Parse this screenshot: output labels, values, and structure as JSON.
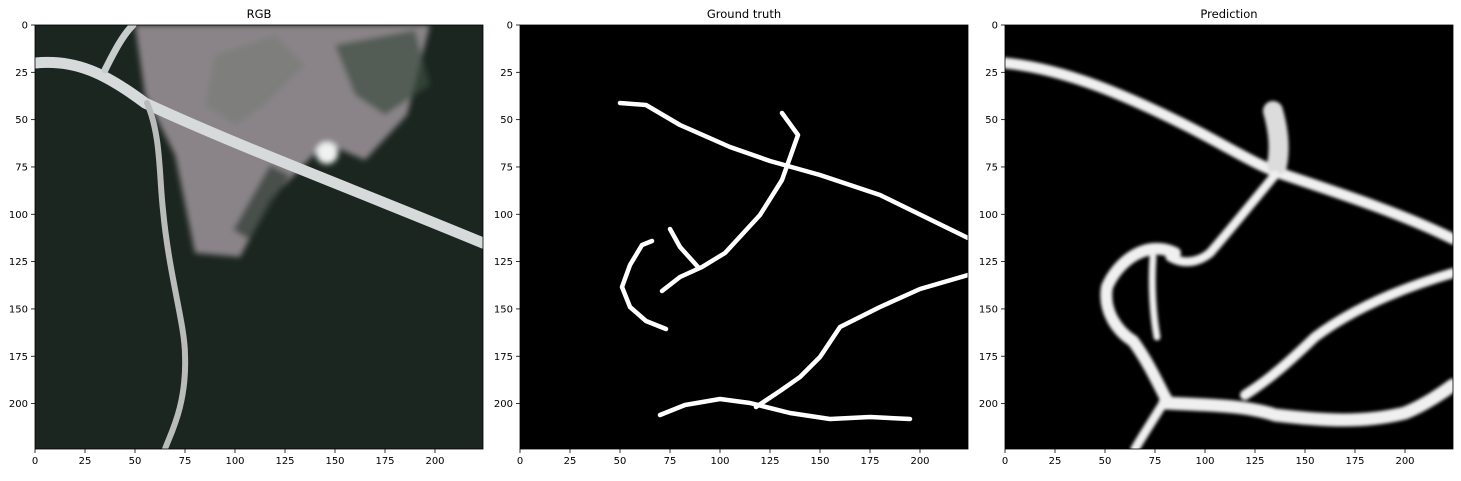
{
  "figure": {
    "panels": [
      {
        "id": "rgb",
        "title": "RGB",
        "image_kind": "satellite-photo",
        "xticks": [
          "0",
          "25",
          "50",
          "75",
          "100",
          "125",
          "150",
          "175",
          "200"
        ],
        "yticks": [
          "0",
          "25",
          "50",
          "75",
          "100",
          "125",
          "150",
          "175",
          "200"
        ]
      },
      {
        "id": "gt",
        "title": "Ground truth",
        "image_kind": "binary-road-mask",
        "xticks": [
          "0",
          "25",
          "50",
          "75",
          "100",
          "125",
          "150",
          "175",
          "200"
        ],
        "yticks": [
          "0",
          "25",
          "50",
          "75",
          "100",
          "125",
          "150",
          "175",
          "200"
        ]
      },
      {
        "id": "pred",
        "title": "Prediction",
        "image_kind": "predicted-road-probability-map",
        "xticks": [
          "0",
          "25",
          "50",
          "75",
          "100",
          "125",
          "150",
          "175",
          "200"
        ],
        "yticks": [
          "0",
          "25",
          "50",
          "75",
          "100",
          "125",
          "150",
          "175",
          "200"
        ]
      }
    ],
    "image_size": [
      224,
      224
    ],
    "colors": {
      "forest": "#1b2620",
      "field": "#8a8488",
      "road": "#d8dcdc",
      "mask_background": "#000000",
      "mask_road": "#ffffff"
    }
  }
}
